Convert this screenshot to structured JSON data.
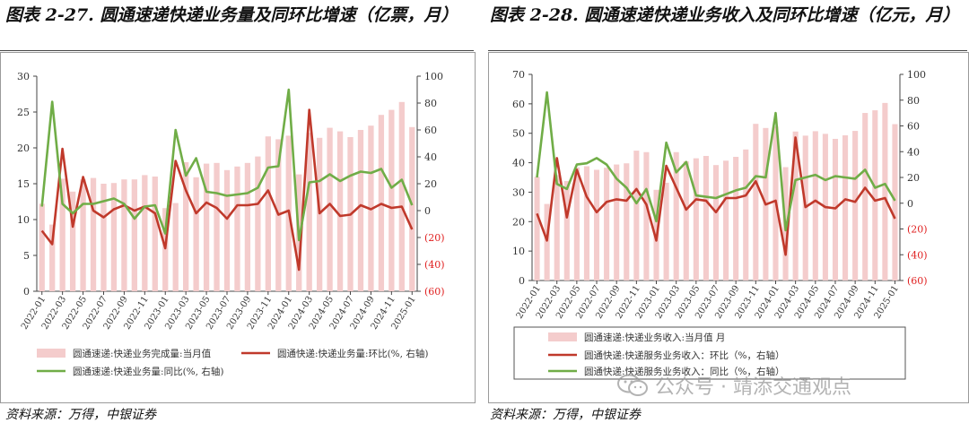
{
  "left": {
    "title": "图表 2-27. 圆通速递快递业务量及同环比增速（亿票，月）",
    "source": "资料来源：万得，中银证券"
  },
  "right": {
    "title": "图表 2-28. 圆通速递快递业务收入及同环比增速（亿元，月）",
    "source": "资料来源：万得，中银证券"
  },
  "watermark": "公众号 · 靖添交通观点",
  "colors": {
    "bar": "#f4cccc",
    "mom": "#c0392b",
    "yoy": "#70ad47",
    "neg_tick": "#e02020"
  },
  "chart_data": [
    {
      "type": "bar",
      "x": [
        "2022-01",
        "2022-02",
        "2022-03",
        "2022-04",
        "2022-05",
        "2022-06",
        "2022-07",
        "2022-08",
        "2022-09",
        "2022-10",
        "2022-11",
        "2022-12",
        "2023-01",
        "2023-02",
        "2023-03",
        "2023-04",
        "2023-05",
        "2023-06",
        "2023-07",
        "2023-08",
        "2023-09",
        "2023-10",
        "2023-11",
        "2023-12",
        "2024-01",
        "2024-02",
        "2024-03",
        "2024-04",
        "2024-05",
        "2024-06",
        "2024-07",
        "2024-08",
        "2024-09",
        "2024-10",
        "2024-11",
        "2024-12",
        "2025-01"
      ],
      "x_tick_labels": [
        "2022-01",
        "2022-03",
        "2022-05",
        "2022-07",
        "2022-09",
        "2022-11",
        "2023-01",
        "2023-03",
        "2023-05",
        "2023-07",
        "2023-09",
        "2023-11",
        "2024-01",
        "2024-03",
        "2024-05",
        "2024-07",
        "2024-09",
        "2024-11",
        "2025-01"
      ],
      "y_left": {
        "min": 0,
        "max": 30,
        "ticks": [
          "0",
          "5",
          "10",
          "15",
          "20",
          "25",
          "30"
        ]
      },
      "y_right": {
        "min": -60,
        "max": 100,
        "ticks": [
          "(60)",
          "(40)",
          "(20)",
          "0",
          "20",
          "40",
          "60",
          "80",
          "100"
        ]
      },
      "series": [
        {
          "name": "圆通速递:快递业务完成量:当月值",
          "kind": "bar",
          "axis": "left",
          "values": [
            12.2,
            9.3,
            15.7,
            13.9,
            15.6,
            15.8,
            15.0,
            15.1,
            15.6,
            15.6,
            16.2,
            16.0,
            11.6,
            12.3,
            18.0,
            15.9,
            17.8,
            17.9,
            16.9,
            17.4,
            17.9,
            18.8,
            21.6,
            21.2,
            21.7,
            16.3,
            22.1,
            21.4,
            22.8,
            22.3,
            21.5,
            22.5,
            23.1,
            24.6,
            25.3,
            26.4,
            22.9
          ]
        },
        {
          "name": "圆通快递:快递业务量:环比(%, 右轴)",
          "kind": "line",
          "axis": "right",
          "values": [
            -15,
            -25,
            46,
            -12,
            25,
            0,
            -5,
            1,
            4,
            0,
            3,
            -2,
            -28,
            37,
            15,
            -2,
            6,
            2,
            -6,
            4,
            4,
            5,
            15,
            -3,
            0,
            -44,
            75,
            -2,
            5,
            -4,
            -3,
            4,
            1,
            5,
            2,
            3,
            -14
          ]
        },
        {
          "name": "圆通速递:快递业务量:同比(%, 右轴)",
          "kind": "line",
          "axis": "right",
          "values": [
            3,
            81,
            5,
            -2,
            5,
            5,
            7,
            9,
            5,
            -6,
            3,
            4,
            -17,
            60,
            26,
            39,
            14,
            13,
            11,
            12,
            13,
            17,
            32,
            33,
            90,
            -22,
            21,
            22,
            27,
            22,
            26,
            29,
            28,
            31,
            17,
            23,
            4
          ]
        }
      ],
      "legend": "bottom"
    },
    {
      "type": "bar",
      "x": [
        "2022-01",
        "2022-02",
        "2022-03",
        "2022-04",
        "2022-05",
        "2022-06",
        "2022-07",
        "2022-08",
        "2022-09",
        "2022-10",
        "2022-11",
        "2022-12",
        "2023-01",
        "2023-02",
        "2023-03",
        "2023-04",
        "2023-05",
        "2023-06",
        "2023-07",
        "2023-08",
        "2023-09",
        "2023-10",
        "2023-11",
        "2023-12",
        "2024-01",
        "2024-02",
        "2024-03",
        "2024-04",
        "2024-05",
        "2024-06",
        "2024-07",
        "2024-08",
        "2024-09",
        "2024-10",
        "2024-11",
        "2024-12",
        "2025-01"
      ],
      "x_tick_labels": [
        "2022-01",
        "2022-03",
        "2022-05",
        "2022-07",
        "2022-09",
        "2022-11",
        "2023-01",
        "2023-03",
        "2023-05",
        "2023-07",
        "2023-09",
        "2023-11",
        "2024-01",
        "2024-03",
        "2024-05",
        "2024-07",
        "2024-09",
        "2024-11",
        "2025-01"
      ],
      "y_left": {
        "min": 0,
        "max": 70,
        "ticks": [
          "0",
          "10",
          "20",
          "30",
          "40",
          "50",
          "60",
          "70"
        ]
      },
      "y_right": {
        "min": -60,
        "max": 100,
        "ticks": [
          "(60)",
          "(40)",
          "(20)",
          "0",
          "20",
          "40",
          "60",
          "80",
          "100"
        ]
      },
      "series": [
        {
          "name": "圆通速递:快递业务收入:当月值 月",
          "kind": "bar",
          "axis": "left",
          "values": [
            35.2,
            26.0,
            35.8,
            33.8,
            38.4,
            38.8,
            37.6,
            38.3,
            39.4,
            39.8,
            44.1,
            43.6,
            30.8,
            33.2,
            43.6,
            40.5,
            41.5,
            42.3,
            39.2,
            40.7,
            42.0,
            44.5,
            53.2,
            51.8,
            52.3,
            38.5,
            50.6,
            49.2,
            50.7,
            49.8,
            48.1,
            49.3,
            50.8,
            56.9,
            57.8,
            60.3,
            53.1
          ]
        },
        {
          "name": "圆通快递:快递服务业务收入：环比（%，右轴）",
          "kind": "line",
          "axis": "right",
          "values": [
            -8,
            -29,
            35,
            -11,
            26,
            5,
            -7,
            1,
            3,
            2,
            11,
            -1,
            -29,
            29,
            12,
            -5,
            3,
            2,
            -7,
            4,
            4,
            6,
            17,
            -1,
            2,
            -40,
            51,
            -3,
            2,
            -3,
            -4,
            3,
            1,
            12,
            2,
            4,
            -12
          ]
        },
        {
          "name": "圆通快递:快递服务业务收入：同比（%，右轴）",
          "kind": "line",
          "axis": "right",
          "values": [
            20,
            86,
            15,
            11,
            30,
            31,
            35,
            30,
            19,
            12,
            0,
            11,
            -14,
            47,
            24,
            32,
            6,
            5,
            4,
            7,
            10,
            12,
            21,
            20,
            70,
            -21,
            18,
            20,
            22,
            18,
            21,
            20,
            19,
            26,
            12,
            15,
            2
          ]
        }
      ],
      "legend": "bottom"
    }
  ]
}
